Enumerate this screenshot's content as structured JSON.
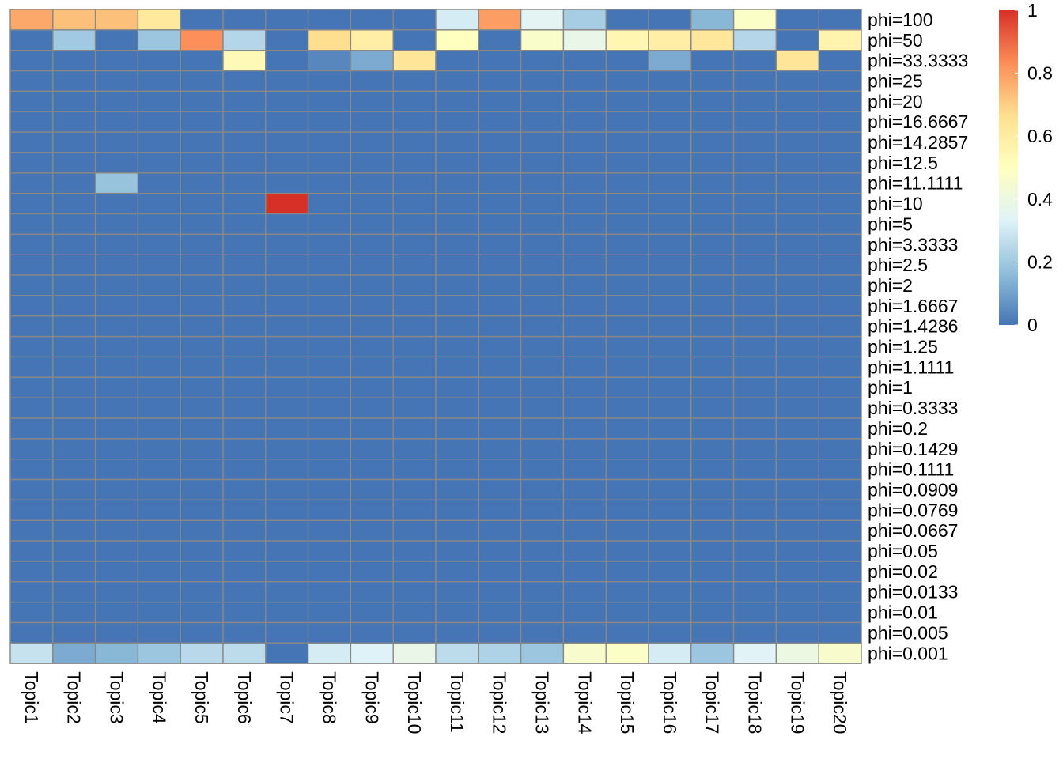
{
  "chart_data": {
    "type": "heatmap",
    "columns": [
      "Topic1",
      "Topic2",
      "Topic3",
      "Topic4",
      "Topic5",
      "Topic6",
      "Topic7",
      "Topic8",
      "Topic9",
      "Topic10",
      "Topic11",
      "Topic12",
      "Topic13",
      "Topic14",
      "Topic15",
      "Topic16",
      "Topic17",
      "Topic18",
      "Topic19",
      "Topic20"
    ],
    "rows": [
      "phi=100",
      "phi=50",
      "phi=33.3333",
      "phi=25",
      "phi=20",
      "phi=16.6667",
      "phi=14.2857",
      "phi=12.5",
      "phi=11.1111",
      "phi=10",
      "phi=5",
      "phi=3.3333",
      "phi=2.5",
      "phi=2",
      "phi=1.6667",
      "phi=1.4286",
      "phi=1.25",
      "phi=1.1111",
      "phi=1",
      "phi=0.3333",
      "phi=0.2",
      "phi=0.1429",
      "phi=0.1111",
      "phi=0.0909",
      "phi=0.0769",
      "phi=0.0667",
      "phi=0.05",
      "phi=0.02",
      "phi=0.0133",
      "phi=0.01",
      "phi=0.005",
      "phi=0.001"
    ],
    "value_range": [
      0,
      1
    ],
    "legend_ticks": [
      0,
      0.2,
      0.4,
      0.6,
      0.8,
      1
    ],
    "legend_tick_labels": [
      "0",
      "0.2",
      "0.4",
      "0.6",
      "0.8",
      "1"
    ],
    "legend_position": "top-right",
    "grid": true,
    "colors": [
      "#4575b4",
      "#91bfdb",
      "#e0f3f8",
      "#ffffbf",
      "#fee090",
      "#fc8d59",
      "#d73027"
    ],
    "border_color": "#888888",
    "values": [
      [
        0.78,
        0.73,
        0.73,
        0.62,
        0.0,
        0.0,
        0.0,
        0.0,
        0.0,
        0.0,
        0.31,
        0.8,
        0.35,
        0.21,
        0.0,
        0.0,
        0.15,
        0.48,
        0.0,
        0.0
      ],
      [
        0.0,
        0.2,
        0.0,
        0.19,
        0.83,
        0.24,
        0.0,
        0.67,
        0.59,
        0.0,
        0.5,
        0.0,
        0.47,
        0.38,
        0.55,
        0.59,
        0.63,
        0.24,
        0.0,
        0.56
      ],
      [
        0.0,
        0.0,
        0.0,
        0.0,
        0.0,
        0.53,
        0.0,
        0.04,
        0.12,
        0.64,
        0.0,
        0.0,
        0.0,
        0.0,
        0.0,
        0.12,
        0.0,
        0.0,
        0.64,
        0.0
      ],
      [
        0,
        0,
        0,
        0,
        0,
        0,
        0,
        0,
        0,
        0,
        0,
        0,
        0,
        0,
        0,
        0,
        0,
        0,
        0,
        0
      ],
      [
        0,
        0,
        0,
        0,
        0,
        0,
        0,
        0,
        0,
        0,
        0,
        0,
        0,
        0,
        0,
        0,
        0,
        0,
        0,
        0
      ],
      [
        0,
        0,
        0,
        0,
        0,
        0,
        0,
        0,
        0,
        0,
        0,
        0,
        0,
        0,
        0,
        0,
        0,
        0,
        0,
        0
      ],
      [
        0,
        0,
        0,
        0,
        0,
        0,
        0,
        0,
        0,
        0,
        0,
        0,
        0,
        0,
        0,
        0,
        0,
        0,
        0,
        0
      ],
      [
        0,
        0,
        0,
        0,
        0,
        0,
        0,
        0,
        0,
        0,
        0,
        0,
        0,
        0,
        0,
        0,
        0,
        0,
        0,
        0
      ],
      [
        0.0,
        0.0,
        0.18,
        0.0,
        0.0,
        0.0,
        0.0,
        0.0,
        0.0,
        0.0,
        0.0,
        0.0,
        0.0,
        0.0,
        0.0,
        0.0,
        0.0,
        0.0,
        0.0,
        0.0
      ],
      [
        0.0,
        0.0,
        0.0,
        0.0,
        0.0,
        0.0,
        1.0,
        0.0,
        0.0,
        0.0,
        0.0,
        0.0,
        0.0,
        0.0,
        0.0,
        0.0,
        0.0,
        0.0,
        0.0,
        0.0
      ],
      [
        0,
        0,
        0,
        0,
        0,
        0,
        0,
        0,
        0,
        0,
        0,
        0,
        0,
        0,
        0,
        0,
        0,
        0,
        0,
        0
      ],
      [
        0,
        0,
        0,
        0,
        0,
        0,
        0,
        0,
        0,
        0,
        0,
        0,
        0,
        0,
        0,
        0,
        0,
        0,
        0,
        0
      ],
      [
        0,
        0,
        0,
        0,
        0,
        0,
        0,
        0,
        0,
        0,
        0,
        0,
        0,
        0,
        0,
        0,
        0,
        0,
        0,
        0
      ],
      [
        0,
        0,
        0,
        0,
        0,
        0,
        0,
        0,
        0,
        0,
        0,
        0,
        0,
        0,
        0,
        0,
        0,
        0,
        0,
        0
      ],
      [
        0,
        0,
        0,
        0,
        0,
        0,
        0,
        0,
        0,
        0,
        0,
        0,
        0,
        0,
        0,
        0,
        0,
        0,
        0,
        0
      ],
      [
        0,
        0,
        0,
        0,
        0,
        0,
        0,
        0,
        0,
        0,
        0,
        0,
        0,
        0,
        0,
        0,
        0,
        0,
        0,
        0
      ],
      [
        0,
        0,
        0,
        0,
        0,
        0,
        0,
        0,
        0,
        0,
        0,
        0,
        0,
        0,
        0,
        0,
        0,
        0,
        0,
        0
      ],
      [
        0,
        0,
        0,
        0,
        0,
        0,
        0,
        0,
        0,
        0,
        0,
        0,
        0,
        0,
        0,
        0,
        0,
        0,
        0,
        0
      ],
      [
        0,
        0,
        0,
        0,
        0,
        0,
        0,
        0,
        0,
        0,
        0,
        0,
        0,
        0,
        0,
        0,
        0,
        0,
        0,
        0
      ],
      [
        0,
        0,
        0,
        0,
        0,
        0,
        0,
        0,
        0,
        0,
        0,
        0,
        0,
        0,
        0,
        0,
        0,
        0,
        0,
        0
      ],
      [
        0,
        0,
        0,
        0,
        0,
        0,
        0,
        0,
        0,
        0,
        0,
        0,
        0,
        0,
        0,
        0,
        0,
        0,
        0,
        0
      ],
      [
        0,
        0,
        0,
        0,
        0,
        0,
        0,
        0,
        0,
        0,
        0,
        0,
        0,
        0,
        0,
        0,
        0,
        0,
        0,
        0
      ],
      [
        0,
        0,
        0,
        0,
        0,
        0,
        0,
        0,
        0,
        0,
        0,
        0,
        0,
        0,
        0,
        0,
        0,
        0,
        0,
        0
      ],
      [
        0,
        0,
        0,
        0,
        0,
        0,
        0,
        0,
        0,
        0,
        0,
        0,
        0,
        0,
        0,
        0,
        0,
        0,
        0,
        0
      ],
      [
        0,
        0,
        0,
        0,
        0,
        0,
        0,
        0,
        0,
        0,
        0,
        0,
        0,
        0,
        0,
        0,
        0,
        0,
        0,
        0
      ],
      [
        0,
        0,
        0,
        0,
        0,
        0,
        0,
        0,
        0,
        0,
        0,
        0,
        0,
        0,
        0,
        0,
        0,
        0,
        0,
        0
      ],
      [
        0,
        0,
        0,
        0,
        0,
        0,
        0,
        0,
        0,
        0,
        0,
        0,
        0,
        0,
        0,
        0,
        0,
        0,
        0,
        0
      ],
      [
        0,
        0,
        0,
        0,
        0,
        0,
        0,
        0,
        0,
        0,
        0,
        0,
        0,
        0,
        0,
        0,
        0,
        0,
        0,
        0
      ],
      [
        0,
        0,
        0,
        0,
        0,
        0,
        0,
        0,
        0,
        0,
        0,
        0,
        0,
        0,
        0,
        0,
        0,
        0,
        0,
        0
      ],
      [
        0,
        0,
        0,
        0,
        0,
        0,
        0,
        0,
        0,
        0,
        0,
        0,
        0,
        0,
        0,
        0,
        0,
        0,
        0,
        0
      ],
      [
        0,
        0,
        0,
        0,
        0,
        0,
        0,
        0,
        0,
        0,
        0,
        0,
        0,
        0,
        0,
        0,
        0,
        0,
        0,
        0
      ],
      [
        0.28,
        0.12,
        0.15,
        0.19,
        0.25,
        0.26,
        0.0,
        0.31,
        0.33,
        0.38,
        0.26,
        0.23,
        0.19,
        0.46,
        0.48,
        0.31,
        0.19,
        0.34,
        0.4,
        0.46
      ]
    ]
  }
}
